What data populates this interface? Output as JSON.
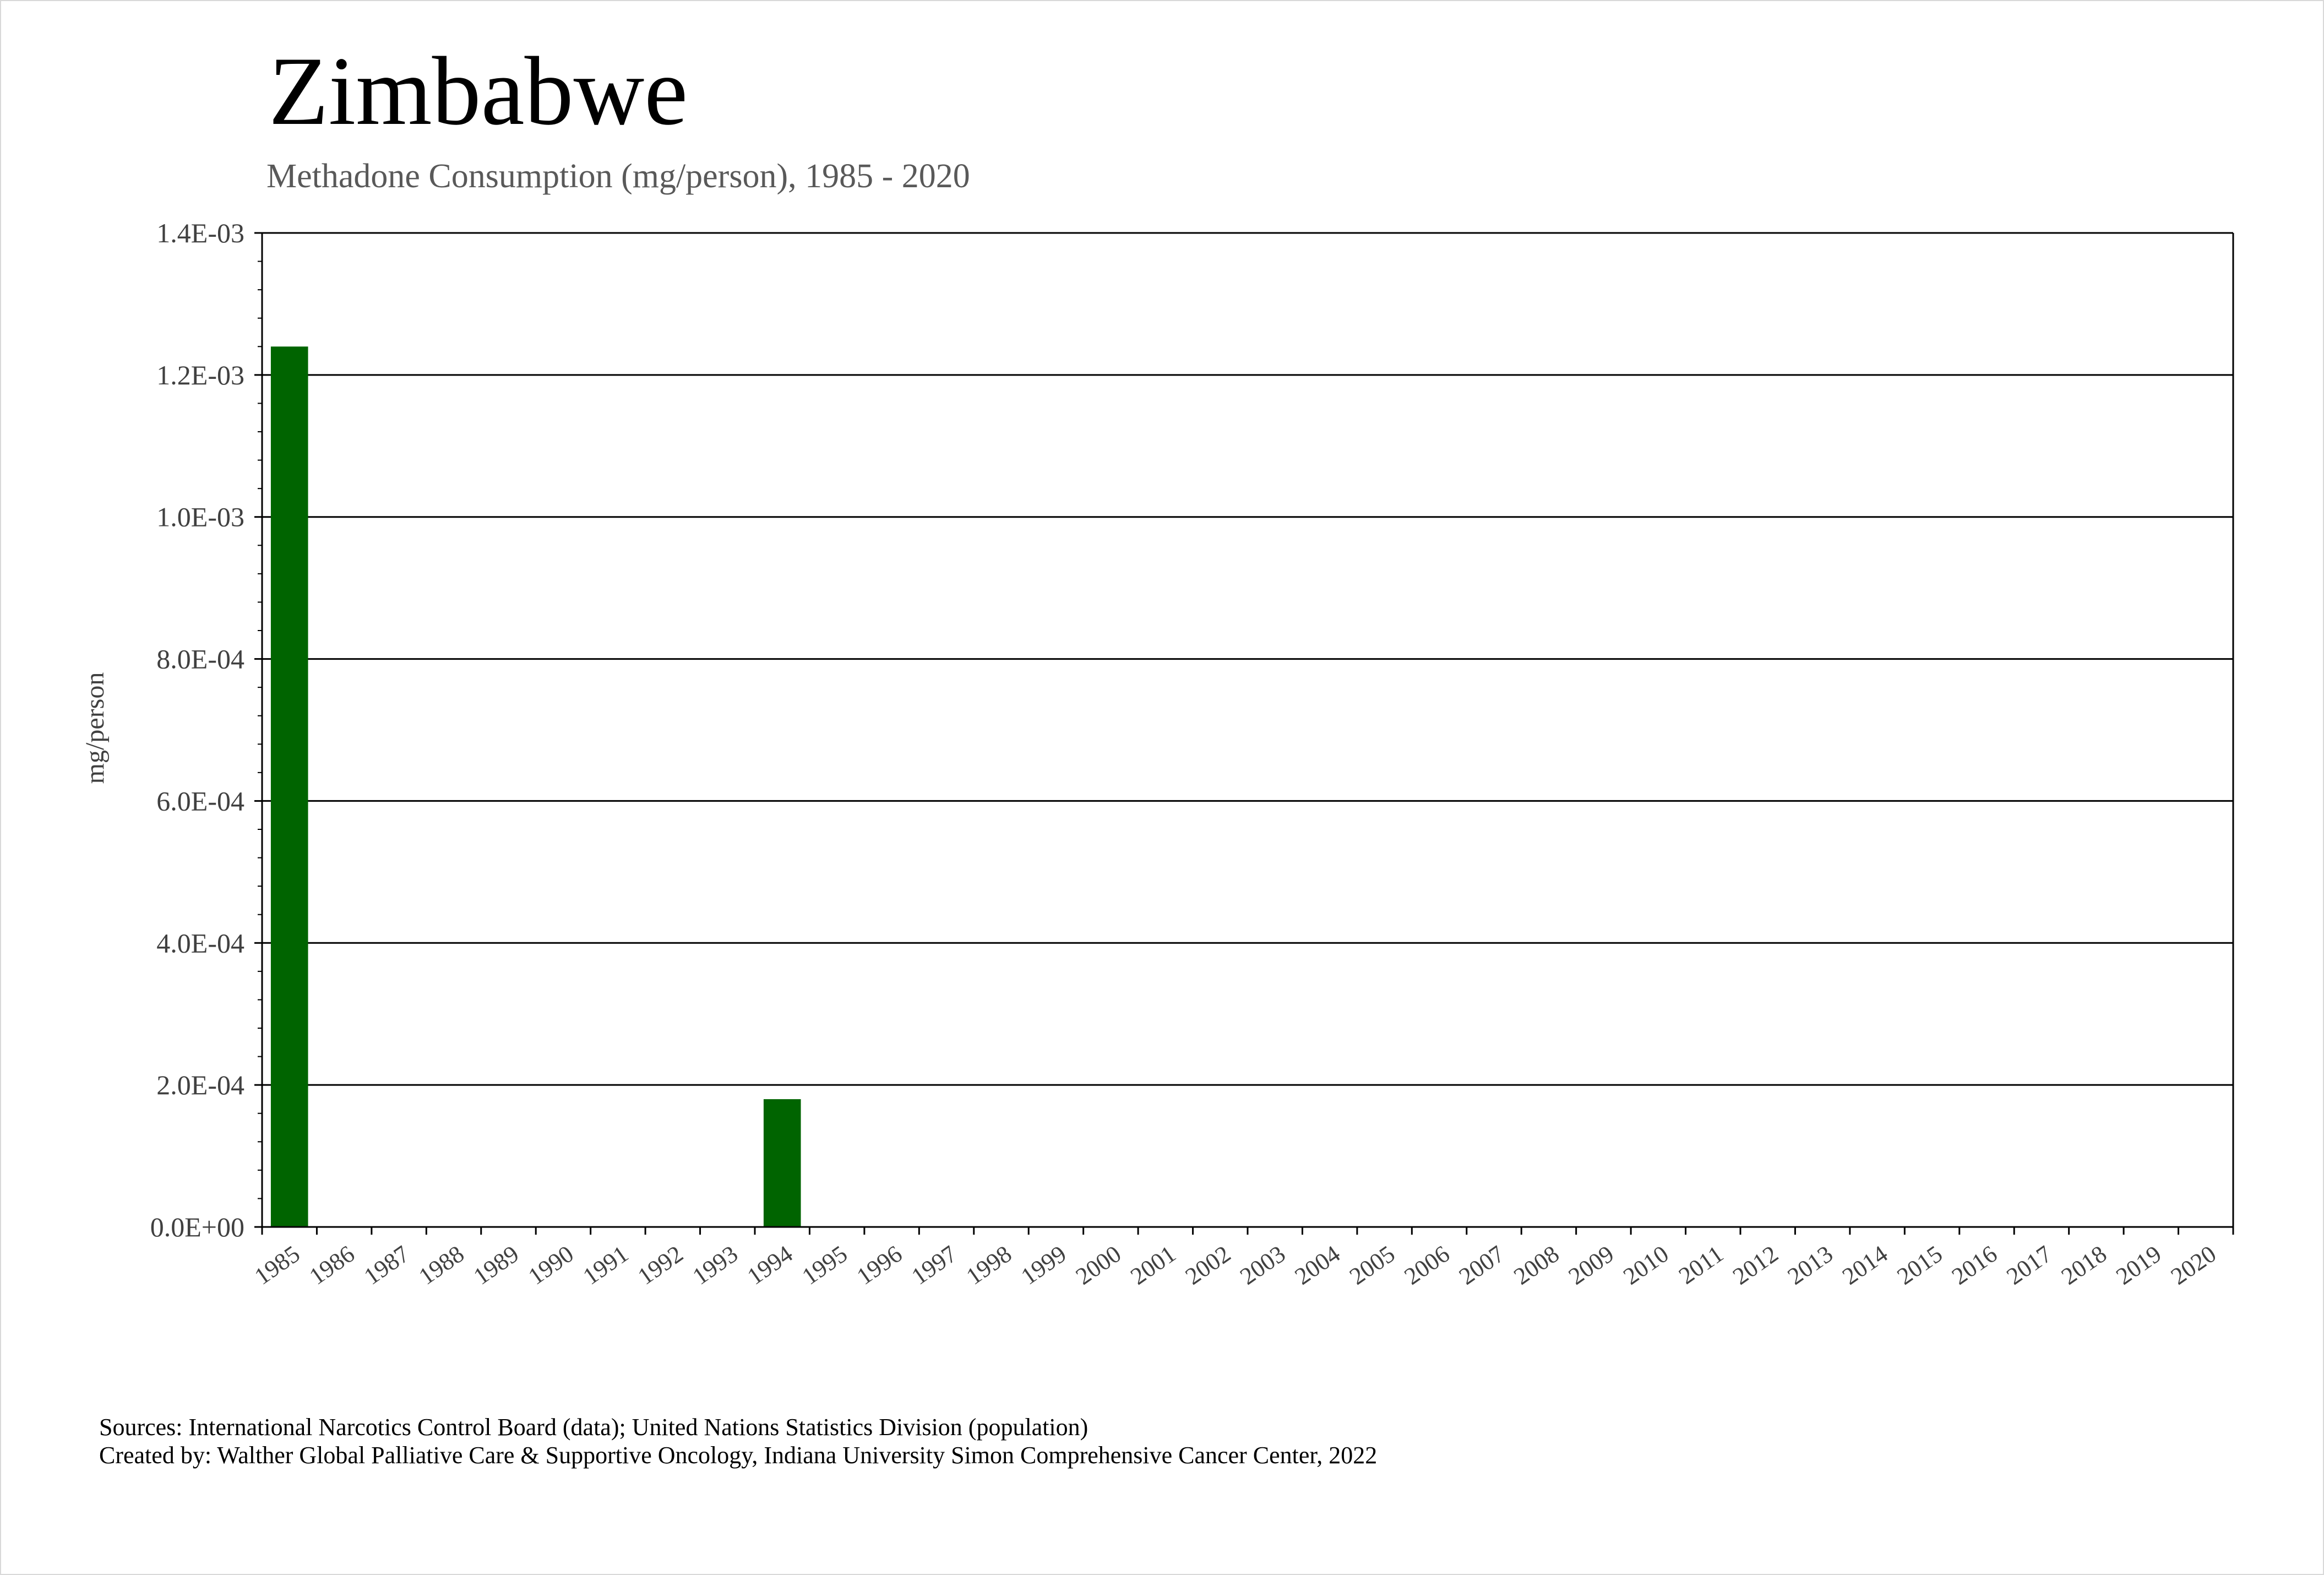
{
  "title": "Zimbabwe",
  "subtitle": "Methadone Consumption (mg/person), 1985 - 2020",
  "sources": [
    "Sources: International Narcotics Control Board (data); United Nations Statistics Division (population)",
    "Created by: Walther Global Palliative Care & Supportive Oncology, Indiana University Simon Comprehensive Cancer Center, 2022"
  ],
  "colors": {
    "bar": "#006400",
    "grid": "#000000"
  },
  "chart_data": {
    "type": "bar",
    "title": "Zimbabwe",
    "subtitle": "Methadone Consumption (mg/person), 1985 - 2020",
    "xlabel": "",
    "ylabel": "mg/person",
    "ylim": [
      0,
      0.0014
    ],
    "yticks": [
      0,
      0.0002,
      0.0004,
      0.0006,
      0.0008,
      0.001,
      0.0012,
      0.0014
    ],
    "ytick_labels": [
      "0.0E+00",
      "2.0E-04",
      "4.0E-04",
      "6.0E-04",
      "8.0E-04",
      "1.0E-03",
      "1.2E-03",
      "1.4E-03"
    ],
    "grid": true,
    "categories": [
      "1985",
      "1986",
      "1987",
      "1988",
      "1989",
      "1990",
      "1991",
      "1992",
      "1993",
      "1994",
      "1995",
      "1996",
      "1997",
      "1998",
      "1999",
      "2000",
      "2001",
      "2002",
      "2003",
      "2004",
      "2005",
      "2006",
      "2007",
      "2008",
      "2009",
      "2010",
      "2011",
      "2012",
      "2013",
      "2014",
      "2015",
      "2016",
      "2017",
      "2018",
      "2019",
      "2020"
    ],
    "values": [
      0.00124,
      0,
      0,
      0,
      0,
      0,
      0,
      0,
      0,
      0.00018,
      0,
      0,
      0,
      0,
      0,
      0,
      0,
      0,
      0,
      0,
      0,
      0,
      0,
      0,
      0,
      0,
      0,
      0,
      0,
      0,
      0,
      0,
      0,
      0,
      0,
      0
    ]
  }
}
